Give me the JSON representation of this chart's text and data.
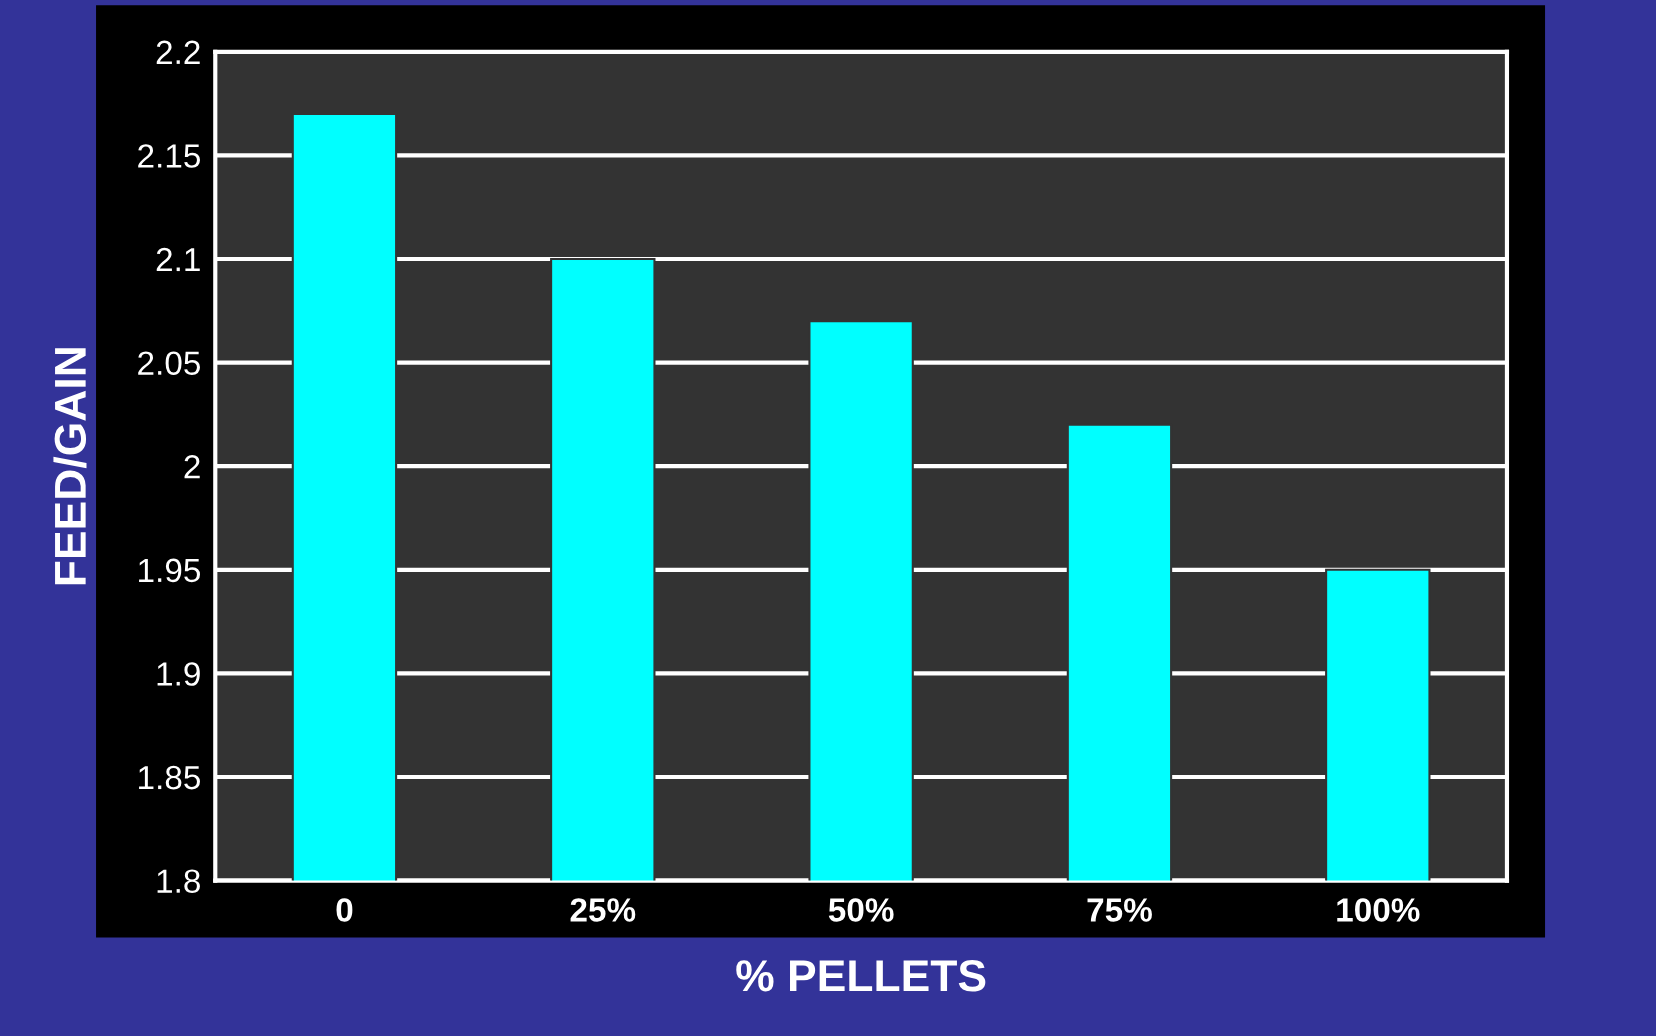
{
  "chart_data": {
    "type": "bar",
    "xlabel": "% PELLETS",
    "ylabel": "FEED/GAIN",
    "categories": [
      "0",
      "25%",
      "50%",
      "75%",
      "100%"
    ],
    "values": [
      2.17,
      2.1,
      2.07,
      2.02,
      1.95
    ],
    "color": "#00ffff",
    "ylim": [
      1.8,
      2.2
    ],
    "yticks": [
      1.8,
      1.85,
      1.9,
      1.95,
      2,
      2.05,
      2.1,
      2.15,
      2.2
    ],
    "grid": "y"
  }
}
